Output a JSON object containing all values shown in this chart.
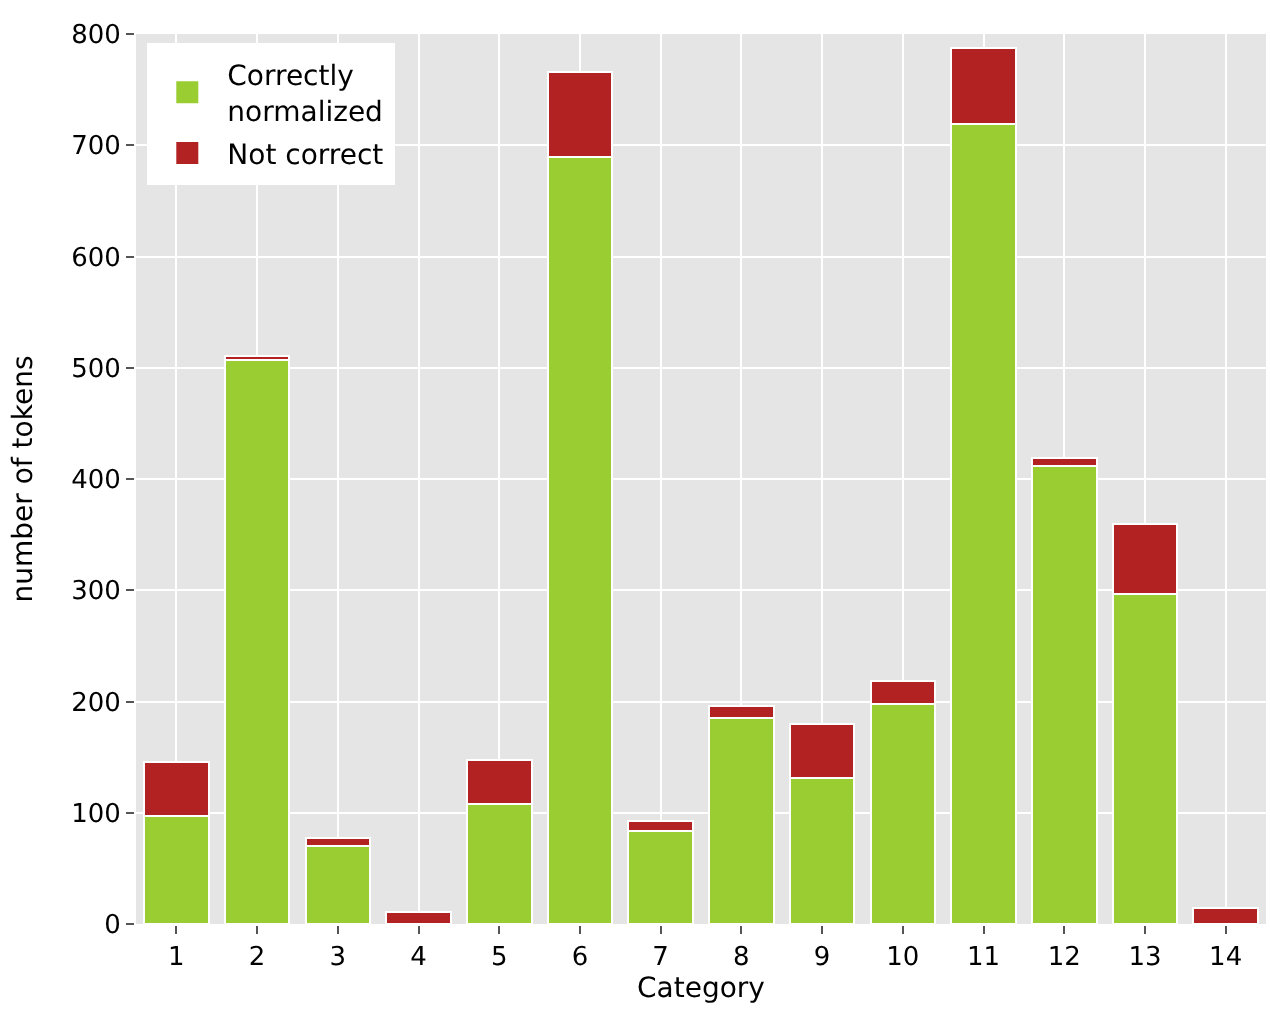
{
  "chart_data": {
    "type": "bar",
    "stacked": true,
    "xlabel": "Category",
    "ylabel": "number of tokens",
    "x": [
      1,
      2,
      3,
      4,
      5,
      6,
      7,
      8,
      9,
      10,
      11,
      12,
      13,
      14
    ],
    "xlim": [
      0.5,
      14.5
    ],
    "xticks": [
      1,
      2,
      3,
      4,
      5,
      6,
      7,
      8,
      9,
      10,
      11,
      12,
      13,
      14
    ],
    "ylim": [
      0,
      800
    ],
    "yticks": [
      0,
      100,
      200,
      300,
      400,
      500,
      600,
      700,
      800
    ],
    "series": [
      {
        "name": "Correctly\nnormalized",
        "color": "#9acd32",
        "values": [
          97,
          507,
          70,
          0,
          108,
          689,
          84,
          185,
          131,
          198,
          719,
          412,
          297,
          null
        ]
      },
      {
        "name": "Not correct",
        "color": "#b22222",
        "values": [
          49,
          4,
          7,
          11,
          39,
          77,
          9,
          11,
          49,
          20,
          68,
          7,
          63,
          14
        ]
      }
    ],
    "grid": true,
    "legend": "top left"
  }
}
